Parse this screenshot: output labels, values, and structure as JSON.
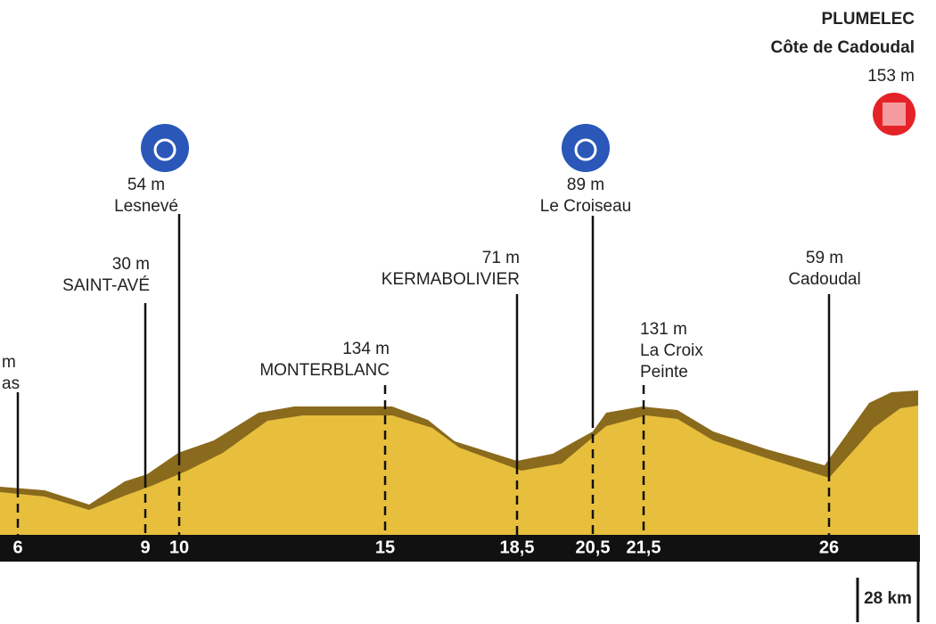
{
  "finish": {
    "name": "PLUMELEC",
    "climb": "Côte de Cadoudal",
    "altitude": "153 m"
  },
  "markers": [
    {
      "km": "6",
      "lines": [
        "m",
        "as"
      ]
    },
    {
      "km": "9",
      "lines": [
        "30 m",
        "SAINT-AVÉ"
      ]
    },
    {
      "km": "10",
      "lines": [
        "54 m",
        "Lesnevé"
      ]
    },
    {
      "km": "15",
      "lines": [
        "134 m",
        "MONTERBLANC"
      ]
    },
    {
      "km": "18,5",
      "lines": [
        "71 m",
        "KERMABOLIVIER"
      ]
    },
    {
      "km": "20,5",
      "lines": [
        "89 m",
        "Le Croiseau"
      ]
    },
    {
      "km": "21,5",
      "lines": [
        "131 m",
        "La Croix",
        "Peinte"
      ]
    },
    {
      "km": "26",
      "lines": [
        "59 m",
        "Cadoudal"
      ]
    }
  ],
  "distance": "28 km"
}
